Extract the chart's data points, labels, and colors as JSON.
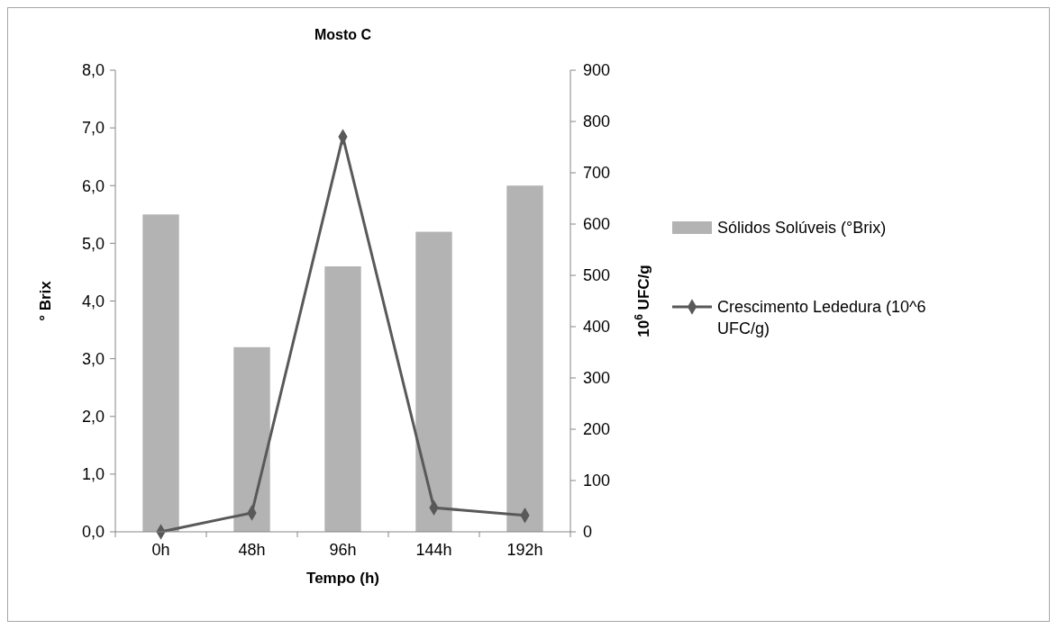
{
  "chart_data": {
    "type": "bar",
    "title": "Mosto C",
    "xlabel": "Tempo (h)",
    "ylabel": "° Brix",
    "y2label": "10$^{6}$ UFC/g",
    "categories": [
      "0h",
      "48h",
      "96h",
      "144h",
      "192h"
    ],
    "series": [
      {
        "name": "Sólidos Solúveis (°Brix)",
        "color": "#b3b3b3",
        "values": [
          5.5,
          3.2,
          4.6,
          5.2,
          6.0
        ]
      },
      {
        "name": "Crescimento Lededura (10^6 UFC/g)",
        "type": "line",
        "axis": "y2",
        "color": "#595959",
        "marker": "diamond",
        "values": [
          0,
          37,
          770,
          47,
          32
        ]
      }
    ],
    "ylim": [
      0,
      8
    ],
    "yticks": [
      {
        "value": 0,
        "label": "0,0"
      },
      {
        "value": 1,
        "label": "1,0"
      },
      {
        "value": 2,
        "label": "2,0"
      },
      {
        "value": 3,
        "label": "3,0"
      },
      {
        "value": 4,
        "label": "4,0"
      },
      {
        "value": 5,
        "label": "5,0"
      },
      {
        "value": 6,
        "label": "6,0"
      },
      {
        "value": 7,
        "label": "7,0"
      },
      {
        "value": 8,
        "label": "8,0"
      }
    ],
    "y2lim": [
      0,
      900
    ],
    "y2ticks": [
      0,
      100,
      200,
      300,
      400,
      500,
      600,
      700,
      800,
      900
    ],
    "legend": "right",
    "grid": false
  }
}
